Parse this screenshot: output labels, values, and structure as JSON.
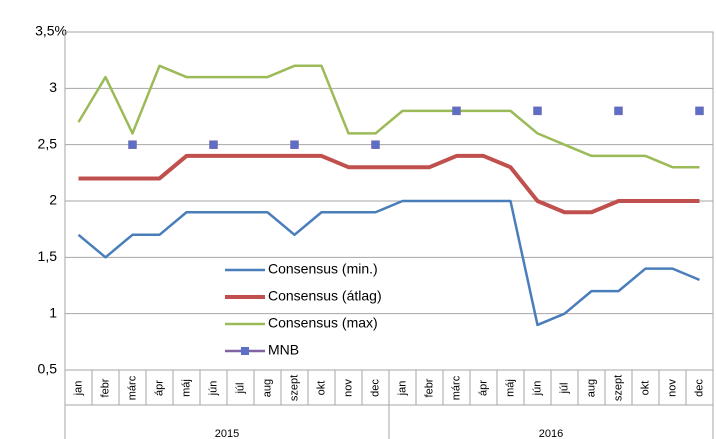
{
  "chart_data": {
    "type": "line",
    "categories": [
      "jan",
      "febr",
      "márc",
      "ápr",
      "máj",
      "jún",
      "júl",
      "aug",
      "szept",
      "okt",
      "nov",
      "dec",
      "jan",
      "febr",
      "márc",
      "ápr",
      "máj",
      "jún",
      "júl",
      "aug",
      "szept",
      "okt",
      "nov",
      "dec"
    ],
    "category_groups": [
      "2015",
      "2016"
    ],
    "series": [
      {
        "name": "Consensus (min.)",
        "color": "#4a7ebb",
        "values": [
          1.7,
          1.5,
          1.7,
          1.7,
          1.9,
          1.9,
          1.9,
          1.9,
          1.7,
          1.9,
          1.9,
          1.9,
          2.0,
          2.0,
          2.0,
          2.0,
          2.0,
          0.9,
          1.0,
          1.2,
          1.2,
          1.4,
          1.4,
          1.3
        ]
      },
      {
        "name": "Consensus (átlag)",
        "color": "#c0504d",
        "values": [
          2.2,
          2.2,
          2.2,
          2.2,
          2.4,
          2.4,
          2.4,
          2.4,
          2.4,
          2.4,
          2.3,
          2.3,
          2.3,
          2.3,
          2.4,
          2.4,
          2.3,
          2.0,
          1.9,
          1.9,
          2.0,
          2.0,
          2.0,
          2.0
        ]
      },
      {
        "name": "Consensus (max)",
        "color": "#9bbb59",
        "values": [
          2.7,
          3.1,
          2.6,
          3.2,
          3.1,
          3.1,
          3.1,
          3.1,
          3.2,
          3.2,
          2.6,
          2.6,
          2.8,
          2.8,
          2.8,
          2.8,
          2.8,
          2.6,
          2.5,
          2.4,
          2.4,
          2.4,
          2.3,
          2.3
        ]
      },
      {
        "name": "MNB",
        "color": "#5b6fc4",
        "markers_only": true,
        "values": [
          null,
          null,
          2.5,
          null,
          null,
          2.5,
          null,
          null,
          2.5,
          null,
          null,
          2.5,
          null,
          null,
          2.8,
          null,
          null,
          2.8,
          null,
          null,
          2.8,
          null,
          null,
          2.8
        ]
      }
    ],
    "ylim": [
      0.5,
      3.5
    ],
    "yticks": [
      {
        "value": 0.5,
        "label": "0,5"
      },
      1,
      {
        "value": 1.5,
        "label": "1,5"
      },
      2,
      {
        "value": 2.5,
        "label": "2,5"
      },
      3,
      {
        "value": 3.5,
        "label": "3,5%"
      }
    ],
    "grid": true,
    "legend": "lower-center"
  }
}
